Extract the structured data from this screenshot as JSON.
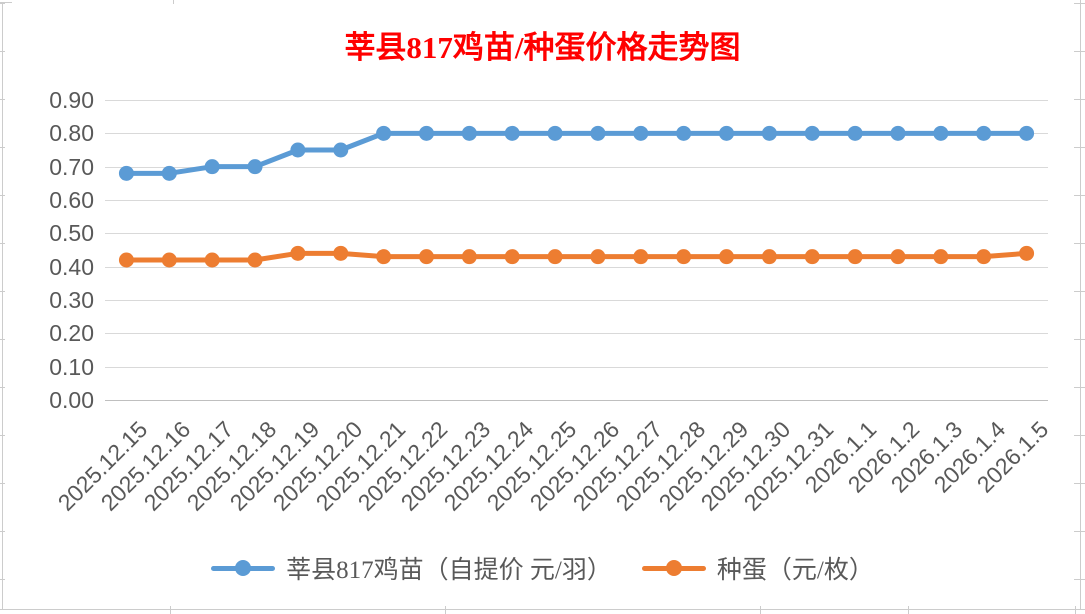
{
  "colors": {
    "title": "#ff0000",
    "axis_label": "#595959",
    "gridline": "#d9d9d9",
    "series1": "#5b9bd5",
    "series2": "#ed7d31"
  },
  "chart_data": {
    "type": "line",
    "title": "莘县817鸡苗/种蛋价格走势图",
    "categories": [
      "2025.12.15",
      "2025.12.16",
      "2025.12.17",
      "2025.12.18",
      "2025.12.19",
      "2025.12.20",
      "2025.12.21",
      "2025.12.22",
      "2025.12.23",
      "2025.12.24",
      "2025.12.25",
      "2025.12.26",
      "2025.12.27",
      "2025.12.28",
      "2025.12.29",
      "2025.12.30",
      "2025.12.31",
      "2026.1.1",
      "2026.1.2",
      "2026.1.3",
      "2026.1.4",
      "2026.1.5"
    ],
    "series": [
      {
        "name": "莘县817鸡苗（自提价 元/羽）",
        "color": "#5b9bd5",
        "values": [
          0.68,
          0.68,
          0.7,
          0.7,
          0.75,
          0.75,
          0.8,
          0.8,
          0.8,
          0.8,
          0.8,
          0.8,
          0.8,
          0.8,
          0.8,
          0.8,
          0.8,
          0.8,
          0.8,
          0.8,
          0.8,
          0.8
        ]
      },
      {
        "name": "种蛋（元/枚）",
        "color": "#ed7d31",
        "values": [
          0.42,
          0.42,
          0.42,
          0.42,
          0.44,
          0.44,
          0.43,
          0.43,
          0.43,
          0.43,
          0.43,
          0.43,
          0.43,
          0.43,
          0.43,
          0.43,
          0.43,
          0.43,
          0.43,
          0.43,
          0.43,
          0.44
        ]
      }
    ],
    "ylim": [
      0,
      0.9
    ],
    "ytick_labels": [
      "0.00",
      "0.10",
      "0.20",
      "0.30",
      "0.40",
      "0.50",
      "0.60",
      "0.70",
      "0.80",
      "0.90"
    ],
    "xlabel": "",
    "ylabel": "",
    "grid": true,
    "legend_position": "bottom"
  }
}
